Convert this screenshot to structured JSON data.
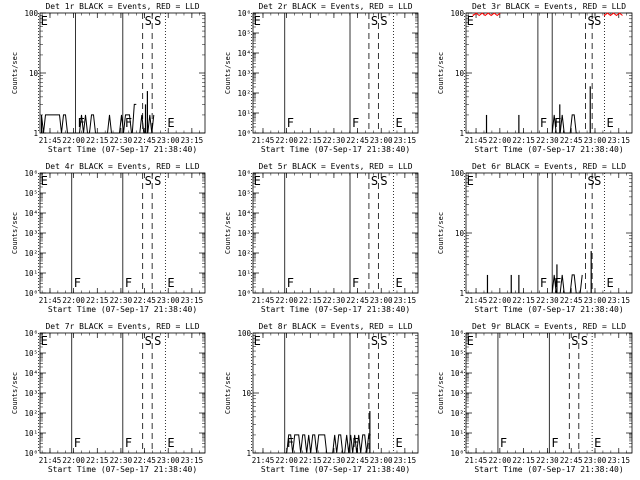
{
  "figure": {
    "xlabel": "Start Time (07-Sep-17 21:38:40)",
    "ylabel": "Counts/sec",
    "xticks": [
      "21:45",
      "22:00",
      "22:15",
      "22:30",
      "22:45",
      "23:00",
      "23:15"
    ],
    "colors": {
      "events": "#000000",
      "lld": "#ff0000",
      "background": "#ffffff"
    }
  },
  "chart_data": [
    {
      "type": "line",
      "title": "Det 1r BLACK = Events, RED = LLD",
      "scale": "log",
      "ylim": [
        1,
        100
      ],
      "yticks": [
        "1",
        "10",
        "100"
      ],
      "markers": [
        {
          "label": "E",
          "x": 21.63,
          "style": "dotted"
        },
        {
          "label": "F",
          "x": 22.02,
          "style": "solid"
        },
        {
          "label": "F",
          "x": 22.52,
          "style": "solid"
        },
        {
          "label": "S",
          "x": 22.73,
          "style": "dashed"
        },
        {
          "label": "S",
          "x": 22.83,
          "style": "dashed"
        },
        {
          "label": "E",
          "x": 22.97,
          "style": "dotted"
        }
      ],
      "events_segments": [
        {
          "x0": 21.66,
          "x1": 22.62,
          "base": 1,
          "peak": 2
        },
        {
          "x0": 22.62,
          "x1": 22.68,
          "base": 1,
          "peak": 3
        },
        {
          "x0": 22.7,
          "x1": 22.85,
          "base": 1,
          "peak": 2
        }
      ],
      "events_spikes": [
        {
          "x": 22.78,
          "y": 5
        },
        {
          "x": 22.76,
          "y": 3
        }
      ],
      "lld_segments": []
    },
    {
      "type": "line",
      "title": "Det 2r BLACK = Events, RED = LLD",
      "scale": "log",
      "ylim": [
        1,
        1000000
      ],
      "yticks": [
        "10⁰",
        "10¹",
        "10²",
        "10³",
        "10⁴",
        "10⁵",
        "10⁶"
      ],
      "markers": [
        {
          "label": "E",
          "x": 21.63,
          "style": "dotted"
        },
        {
          "label": "F",
          "x": 21.98,
          "style": "solid"
        },
        {
          "label": "F",
          "x": 22.67,
          "style": "solid"
        },
        {
          "label": "S",
          "x": 22.87,
          "style": "dashed"
        },
        {
          "label": "S",
          "x": 22.97,
          "style": "dashed"
        },
        {
          "label": "E",
          "x": 23.13,
          "style": "dotted"
        }
      ],
      "events_segments": [],
      "events_spikes": [],
      "lld_segments": []
    },
    {
      "type": "line",
      "title": "Det 3r BLACK = Events, RED = LLD",
      "scale": "log",
      "ylim": [
        1,
        100
      ],
      "yticks": [
        "1",
        "10",
        "100"
      ],
      "markers": [
        {
          "label": "E",
          "x": 21.63,
          "style": "dotted"
        },
        {
          "label": "F",
          "x": 22.4,
          "style": "solid"
        },
        {
          "label": "F",
          "x": 22.55,
          "style": "solid"
        },
        {
          "label": "S",
          "x": 22.9,
          "style": "dashed"
        },
        {
          "label": "S",
          "x": 22.97,
          "style": "dashed"
        },
        {
          "label": "E",
          "x": 23.1,
          "style": "dotted"
        }
      ],
      "events_segments": [
        {
          "x0": 22.55,
          "x1": 22.83,
          "base": 1,
          "peak": 2
        }
      ],
      "events_spikes": [
        {
          "x": 21.86,
          "y": 2
        },
        {
          "x": 22.2,
          "y": 2
        },
        {
          "x": 22.63,
          "y": 3
        },
        {
          "x": 22.95,
          "y": 6
        }
      ],
      "lld_segments": [
        {
          "x0": 21.72,
          "x1": 22.02,
          "y": 95
        },
        {
          "x0": 23.1,
          "x1": 23.3,
          "y": 95
        }
      ]
    },
    {
      "type": "line",
      "title": "Det 4r BLACK = Events, RED = LLD",
      "scale": "log",
      "ylim": [
        1,
        1000000
      ],
      "yticks": [
        "10⁰",
        "10¹",
        "10²",
        "10³",
        "10⁴",
        "10⁵",
        "10⁶"
      ],
      "markers": [
        {
          "label": "E",
          "x": 21.63,
          "style": "dotted"
        },
        {
          "label": "F",
          "x": 21.98,
          "style": "solid"
        },
        {
          "label": "F",
          "x": 22.52,
          "style": "solid"
        },
        {
          "label": "S",
          "x": 22.73,
          "style": "dashed"
        },
        {
          "label": "S",
          "x": 22.83,
          "style": "dashed"
        },
        {
          "label": "E",
          "x": 22.97,
          "style": "dotted"
        }
      ],
      "events_segments": [],
      "events_spikes": [],
      "lld_segments": []
    },
    {
      "type": "line",
      "title": "Det 5r BLACK = Events, RED = LLD",
      "scale": "log",
      "ylim": [
        1,
        1000000
      ],
      "yticks": [
        "10⁰",
        "10¹",
        "10²",
        "10³",
        "10⁴",
        "10⁵",
        "10⁶"
      ],
      "markers": [
        {
          "label": "E",
          "x": 21.63,
          "style": "dotted"
        },
        {
          "label": "F",
          "x": 21.98,
          "style": "solid"
        },
        {
          "label": "F",
          "x": 22.67,
          "style": "solid"
        },
        {
          "label": "S",
          "x": 22.87,
          "style": "dashed"
        },
        {
          "label": "S",
          "x": 22.97,
          "style": "dashed"
        },
        {
          "label": "E",
          "x": 23.13,
          "style": "dotted"
        }
      ],
      "events_segments": [],
      "events_spikes": [],
      "lld_segments": []
    },
    {
      "type": "line",
      "title": "Det 6r BLACK = Events, RED = LLD",
      "scale": "log",
      "ylim": [
        1,
        100
      ],
      "yticks": [
        "1",
        "10",
        "100"
      ],
      "markers": [
        {
          "label": "E",
          "x": 21.63,
          "style": "dotted"
        },
        {
          "label": "F",
          "x": 22.4,
          "style": "solid"
        },
        {
          "label": "F",
          "x": 22.55,
          "style": "solid"
        },
        {
          "label": "S",
          "x": 22.9,
          "style": "dashed"
        },
        {
          "label": "S",
          "x": 22.97,
          "style": "dashed"
        },
        {
          "label": "E",
          "x": 23.1,
          "style": "dotted"
        }
      ],
      "events_segments": [
        {
          "x0": 22.55,
          "x1": 22.88,
          "base": 1,
          "peak": 2
        }
      ],
      "events_spikes": [
        {
          "x": 21.87,
          "y": 2
        },
        {
          "x": 22.12,
          "y": 2
        },
        {
          "x": 22.2,
          "y": 2
        },
        {
          "x": 22.6,
          "y": 3
        },
        {
          "x": 22.96,
          "y": 5
        }
      ],
      "lld_segments": []
    },
    {
      "type": "line",
      "title": "Det 7r BLACK = Events, RED = LLD",
      "scale": "log",
      "ylim": [
        1,
        1000000
      ],
      "yticks": [
        "10⁰",
        "10¹",
        "10²",
        "10³",
        "10⁴",
        "10⁵",
        "10⁶"
      ],
      "markers": [
        {
          "label": "E",
          "x": 21.63,
          "style": "dotted"
        },
        {
          "label": "F",
          "x": 21.98,
          "style": "solid"
        },
        {
          "label": "F",
          "x": 22.52,
          "style": "solid"
        },
        {
          "label": "S",
          "x": 22.73,
          "style": "dashed"
        },
        {
          "label": "S",
          "x": 22.83,
          "style": "dashed"
        },
        {
          "label": "E",
          "x": 22.97,
          "style": "dotted"
        }
      ],
      "events_segments": [],
      "events_spikes": [],
      "lld_segments": []
    },
    {
      "type": "line",
      "title": "Det 8r BLACK = Events, RED = LLD",
      "scale": "log",
      "ylim": [
        1,
        100
      ],
      "yticks": [
        "1",
        "10",
        "100"
      ],
      "markers": [
        {
          "label": "E",
          "x": 21.63,
          "style": "dotted"
        },
        {
          "label": "F",
          "x": 21.98,
          "style": "solid"
        },
        {
          "label": "F",
          "x": 22.67,
          "style": "solid"
        },
        {
          "label": "S",
          "x": 22.87,
          "style": "dashed"
        },
        {
          "label": "S",
          "x": 22.97,
          "style": "dashed"
        },
        {
          "label": "E",
          "x": 23.13,
          "style": "dotted"
        }
      ],
      "events_segments": [
        {
          "x0": 21.98,
          "x1": 22.9,
          "base": 1,
          "peak": 2
        }
      ],
      "events_spikes": [
        {
          "x": 22.88,
          "y": 5
        }
      ],
      "lld_segments": []
    },
    {
      "type": "line",
      "title": "Det 9r BLACK = Events, RED = LLD",
      "scale": "log",
      "ylim": [
        1,
        1000000
      ],
      "yticks": [
        "10⁰",
        "10¹",
        "10²",
        "10³",
        "10⁴",
        "10⁵",
        "10⁶"
      ],
      "markers": [
        {
          "label": "E",
          "x": 21.63,
          "style": "dotted"
        },
        {
          "label": "F",
          "x": 21.98,
          "style": "solid"
        },
        {
          "label": "F",
          "x": 22.52,
          "style": "solid"
        },
        {
          "label": "S",
          "x": 22.73,
          "style": "dashed"
        },
        {
          "label": "S",
          "x": 22.83,
          "style": "dashed"
        },
        {
          "label": "E",
          "x": 22.97,
          "style": "dotted"
        }
      ],
      "events_segments": [],
      "events_spikes": [],
      "lld_segments": []
    }
  ]
}
